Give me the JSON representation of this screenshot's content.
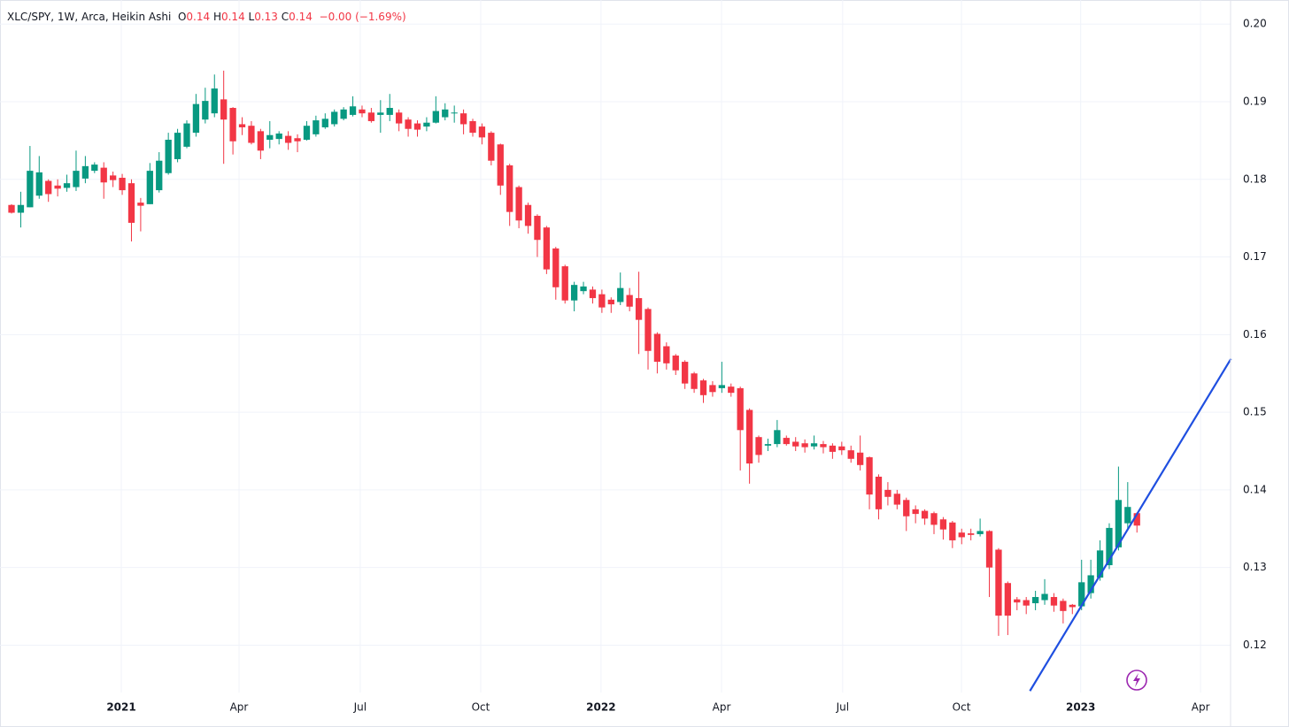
{
  "header": {
    "symbol": "XLC/SPY, 1W, Arca, Heikin Ashi",
    "ohlc": [
      {
        "label": "O",
        "value": "0.14"
      },
      {
        "label": "H",
        "value": "0.14"
      },
      {
        "label": "L",
        "value": "0.13"
      },
      {
        "label": "C",
        "value": "0.14"
      }
    ],
    "change": "−0.00 (−1.69%)"
  },
  "chart_data": {
    "type": "candlestick",
    "up_color": "#089981",
    "down_color": "#f23645",
    "grid": true,
    "xlim": [
      -1.25,
      132.15
    ],
    "ylim": [
      0.1139,
      0.2031
    ],
    "yticks": [
      0.12,
      0.13,
      0.14,
      0.15,
      0.16,
      0.17,
      0.18,
      0.19,
      {
        "value": 0.2,
        "label": "0.20"
      }
    ],
    "xticks": [
      {
        "value": 11.9,
        "label": "2021",
        "bold": true
      },
      {
        "value": 24.66,
        "label": "Apr"
      },
      {
        "value": 37.8,
        "label": "Jul"
      },
      {
        "value": 50.86,
        "label": "Oct"
      },
      {
        "value": 63.9,
        "label": "2022",
        "bold": true
      },
      {
        "value": 76.97,
        "label": "Apr"
      },
      {
        "value": 90.1,
        "label": "Jul"
      },
      {
        "value": 102.98,
        "label": "Oct"
      },
      {
        "value": 115.9,
        "label": "2023",
        "bold": true
      },
      {
        "value": 128.9,
        "label": "Apr"
      }
    ],
    "trendline": {
      "color": "#1f4fe0",
      "x": [
        110.4,
        132.2
      ],
      "y": [
        0.1141,
        0.1569
      ]
    },
    "open": [
      0.1767,
      0.1757,
      0.1764,
      0.1779,
      0.1798,
      0.1792,
      0.1789,
      0.179,
      0.1801,
      0.1811,
      0.1815,
      0.1805,
      0.1802,
      0.1795,
      0.177,
      0.1768,
      0.1786,
      0.1808,
      0.1826,
      0.1842,
      0.186,
      0.1877,
      0.1885,
      0.1903,
      0.1892,
      0.1871,
      0.1869,
      0.1862,
      0.1851,
      0.1852,
      0.1856,
      0.1853,
      0.1851,
      0.1858,
      0.1867,
      0.1871,
      0.1878,
      0.1883,
      0.189,
      0.1886,
      0.1883,
      0.1883,
      0.1886,
      0.1877,
      0.1872,
      0.1868,
      0.1873,
      0.188,
      0.1885,
      0.1885,
      0.1875,
      0.1868,
      0.186,
      0.1845,
      0.1818,
      0.179,
      0.1767,
      0.1753,
      0.1738,
      0.1711,
      0.1688,
      0.1644,
      0.1656,
      0.1658,
      0.1652,
      0.1645,
      0.1642,
      0.1651,
      0.1647,
      0.1633,
      0.1601,
      0.1585,
      0.1573,
      0.1565,
      0.155,
      0.1541,
      0.1535,
      0.1531,
      0.1533,
      0.1531,
      0.1503,
      0.1468,
      0.1457,
      0.1459,
      0.1467,
      0.1462,
      0.146,
      0.1456,
      0.1459,
      0.1457,
      0.1456,
      0.1451,
      0.1448,
      0.1442,
      0.1417,
      0.14,
      0.1395,
      0.1387,
      0.1375,
      0.1373,
      0.137,
      0.1362,
      0.1358,
      0.1345,
      0.1344,
      0.1343,
      0.1347,
      0.1323,
      0.128,
      0.1259,
      0.1258,
      0.1254,
      0.1258,
      0.1262,
      0.1257,
      0.1252,
      0.125,
      0.1267,
      0.1287,
      0.1303,
      0.1326,
      0.1357,
      0.137
    ],
    "high": [
      0.1768,
      0.1784,
      0.1843,
      0.183,
      0.18,
      0.18,
      0.1806,
      0.1837,
      0.183,
      0.1822,
      0.1822,
      0.181,
      0.1807,
      0.18,
      0.1776,
      0.1821,
      0.1835,
      0.186,
      0.1865,
      0.1876,
      0.191,
      0.1918,
      0.1935,
      0.194,
      0.1893,
      0.188,
      0.1875,
      0.1865,
      0.1875,
      0.1862,
      0.1862,
      0.1858,
      0.1875,
      0.1882,
      0.1885,
      0.189,
      0.1893,
      0.1907,
      0.1895,
      0.1892,
      0.1902,
      0.191,
      0.189,
      0.188,
      0.1876,
      0.188,
      0.1907,
      0.1898,
      0.1895,
      0.189,
      0.1878,
      0.1872,
      0.1862,
      0.1846,
      0.182,
      0.1792,
      0.177,
      0.1755,
      0.174,
      0.1713,
      0.169,
      0.1668,
      0.1668,
      0.1662,
      0.1658,
      0.1648,
      0.168,
      0.166,
      0.1681,
      0.1635,
      0.1603,
      0.159,
      0.1575,
      0.1567,
      0.1552,
      0.1543,
      0.154,
      0.1565,
      0.1537,
      0.1533,
      0.1505,
      0.147,
      0.1466,
      0.149,
      0.147,
      0.1468,
      0.1465,
      0.147,
      0.1463,
      0.146,
      0.1462,
      0.1457,
      0.147,
      0.1443,
      0.142,
      0.141,
      0.14,
      0.139,
      0.138,
      0.1375,
      0.1372,
      0.1365,
      0.136,
      0.135,
      0.135,
      0.1363,
      0.1348,
      0.1325,
      0.1282,
      0.1262,
      0.1262,
      0.127,
      0.1285,
      0.1267,
      0.126,
      0.1253,
      0.131,
      0.131,
      0.1335,
      0.1357,
      0.143,
      0.141,
      0.1371
    ],
    "low": [
      0.1756,
      0.1738,
      0.1764,
      0.1775,
      0.1771,
      0.1778,
      0.1784,
      0.1785,
      0.1795,
      0.1808,
      0.1775,
      0.179,
      0.178,
      0.172,
      0.1733,
      0.1768,
      0.1783,
      0.1806,
      0.1822,
      0.184,
      0.1855,
      0.1872,
      0.188,
      0.182,
      0.1832,
      0.1857,
      0.1845,
      0.1826,
      0.184,
      0.1845,
      0.1838,
      0.1835,
      0.185,
      0.1855,
      0.1865,
      0.1868,
      0.1876,
      0.1881,
      0.188,
      0.1873,
      0.186,
      0.1875,
      0.1862,
      0.1855,
      0.1855,
      0.1862,
      0.1872,
      0.1876,
      0.1873,
      0.1858,
      0.1855,
      0.1845,
      0.1818,
      0.178,
      0.174,
      0.1737,
      0.173,
      0.17,
      0.1678,
      0.1645,
      0.164,
      0.163,
      0.1652,
      0.164,
      0.1628,
      0.1628,
      0.1638,
      0.163,
      0.1575,
      0.1555,
      0.155,
      0.1555,
      0.1548,
      0.153,
      0.1525,
      0.1512,
      0.152,
      0.1525,
      0.152,
      0.1425,
      0.1408,
      0.1435,
      0.145,
      0.1455,
      0.1457,
      0.145,
      0.1448,
      0.1452,
      0.1447,
      0.144,
      0.1445,
      0.1435,
      0.1425,
      0.1375,
      0.1362,
      0.138,
      0.1375,
      0.1347,
      0.1357,
      0.1355,
      0.1343,
      0.1336,
      0.1325,
      0.133,
      0.1335,
      0.134,
      0.1262,
      0.1212,
      0.1213,
      0.1245,
      0.124,
      0.1245,
      0.1252,
      0.1243,
      0.1228,
      0.124,
      0.1245,
      0.126,
      0.1283,
      0.1298,
      0.1322,
      0.135,
      0.1345
    ],
    "close": [
      0.1757,
      0.1767,
      0.1811,
      0.1809,
      0.1781,
      0.1788,
      0.1795,
      0.1811,
      0.1817,
      0.1819,
      0.1796,
      0.1799,
      0.1786,
      0.1744,
      0.1766,
      0.1811,
      0.1824,
      0.1851,
      0.186,
      0.1872,
      0.1897,
      0.1901,
      0.1917,
      0.1877,
      0.1849,
      0.1867,
      0.1847,
      0.1837,
      0.1857,
      0.1859,
      0.1847,
      0.1849,
      0.1869,
      0.1876,
      0.1878,
      0.1887,
      0.189,
      0.1894,
      0.1885,
      0.1875,
      0.1886,
      0.1892,
      0.1872,
      0.1865,
      0.1864,
      0.1873,
      0.1888,
      0.189,
      0.1886,
      0.1871,
      0.186,
      0.1854,
      0.1824,
      0.1792,
      0.1758,
      0.1747,
      0.174,
      0.1722,
      0.1684,
      0.1661,
      0.1644,
      0.1664,
      0.1662,
      0.1647,
      0.1635,
      0.1639,
      0.166,
      0.1636,
      0.1619,
      0.1579,
      0.1565,
      0.1563,
      0.1554,
      0.1537,
      0.153,
      0.1522,
      0.1526,
      0.1535,
      0.1525,
      0.1477,
      0.1434,
      0.1445,
      0.1459,
      0.1477,
      0.1459,
      0.1456,
      0.1455,
      0.146,
      0.1455,
      0.1449,
      0.1451,
      0.144,
      0.1432,
      0.1394,
      0.1375,
      0.1391,
      0.1381,
      0.1366,
      0.1369,
      0.1363,
      0.1355,
      0.1349,
      0.1335,
      0.1339,
      0.1342,
      0.1347,
      0.13,
      0.1238,
      0.1238,
      0.1255,
      0.1251,
      0.1262,
      0.1266,
      0.1251,
      0.1244,
      0.1249,
      0.1281,
      0.129,
      0.1322,
      0.1351,
      0.1387,
      0.1378,
      0.1354
    ]
  }
}
